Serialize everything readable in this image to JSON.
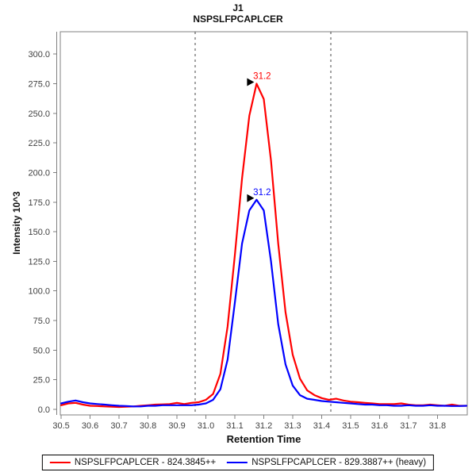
{
  "header": {
    "title": "J1",
    "subtitle": "NSPSLFPCAPLCER"
  },
  "chart_data": {
    "type": "line",
    "title": "J1",
    "subtitle": "NSPSLFPCAPLCER",
    "xlabel": "Retention Time",
    "ylabel": "Intensity 10^3",
    "grid": false,
    "legend_position": "bottom",
    "xlim": [
      30.497,
      31.903
    ],
    "ylim": [
      -4.7,
      318.9
    ],
    "x_ticks": [
      30.5,
      30.6,
      30.7,
      30.8,
      30.9,
      31.0,
      31.1,
      31.2,
      31.3,
      31.4,
      31.5,
      31.6,
      31.7,
      31.8
    ],
    "y_ticks": [
      0.0,
      25.0,
      50.0,
      75.0,
      100.0,
      125.0,
      150.0,
      175.0,
      200.0,
      225.0,
      250.0,
      275.0,
      300.0
    ],
    "peak_boundaries": [
      30.963,
      31.432
    ],
    "x": [
      30.5,
      30.525,
      30.55,
      30.575,
      30.6,
      30.625,
      30.65,
      30.675,
      30.7,
      30.725,
      30.75,
      30.775,
      30.8,
      30.825,
      30.85,
      30.875,
      30.9,
      30.925,
      30.95,
      30.975,
      31.0,
      31.025,
      31.05,
      31.075,
      31.1,
      31.125,
      31.15,
      31.175,
      31.2,
      31.225,
      31.25,
      31.275,
      31.3,
      31.325,
      31.35,
      31.375,
      31.4,
      31.425,
      31.45,
      31.475,
      31.5,
      31.525,
      31.55,
      31.575,
      31.6,
      31.625,
      31.65,
      31.675,
      31.7,
      31.725,
      31.75,
      31.775,
      31.8,
      31.825,
      31.85,
      31.875,
      31.9
    ],
    "series": [
      {
        "name": "NSPSLFPCAPLCER - 824.3845++",
        "color": "#ff0000",
        "annotation": {
          "label": "31.2",
          "x": 31.175,
          "y": 275.0
        },
        "values": [
          3.5,
          5.0,
          5.5,
          4.0,
          3.0,
          2.8,
          2.5,
          2.2,
          2.0,
          2.2,
          2.5,
          3.0,
          3.5,
          4.0,
          4.2,
          4.5,
          5.5,
          4.5,
          5.5,
          6.0,
          8.0,
          13.0,
          30.0,
          70.0,
          130.0,
          195.0,
          248.0,
          275.0,
          262.0,
          210.0,
          140.0,
          82.0,
          46.0,
          26.0,
          16.0,
          12.0,
          9.5,
          8.0,
          9.0,
          7.5,
          6.5,
          6.0,
          5.5,
          5.0,
          4.5,
          4.5,
          4.5,
          5.0,
          4.0,
          3.5,
          3.5,
          4.0,
          3.5,
          3.0,
          4.0,
          3.0,
          3.0
        ]
      },
      {
        "name": "NSPSLFPCAPLCER - 829.3887++ (heavy)",
        "color": "#0000ff",
        "annotation": {
          "label": "31.2",
          "x": 31.175,
          "y": 177.0
        },
        "values": [
          5.0,
          6.5,
          7.5,
          6.0,
          5.0,
          4.5,
          4.0,
          3.5,
          3.0,
          2.8,
          2.5,
          2.5,
          3.0,
          3.0,
          3.5,
          3.5,
          3.5,
          3.5,
          3.5,
          4.0,
          5.0,
          8.0,
          17.0,
          42.0,
          90.0,
          140.0,
          168.0,
          177.0,
          168.0,
          125.0,
          72.0,
          38.0,
          20.0,
          12.0,
          9.0,
          8.0,
          7.0,
          6.5,
          6.0,
          5.5,
          5.0,
          4.5,
          4.0,
          4.0,
          3.5,
          3.5,
          3.0,
          3.0,
          3.5,
          3.0,
          3.0,
          3.5,
          3.0,
          3.0,
          2.8,
          2.8,
          3.0
        ]
      }
    ]
  },
  "legend": {
    "items": [
      {
        "label": "NSPSLFPCAPLCER - 824.3845++",
        "color": "#ff0000"
      },
      {
        "label": "NSPSLFPCAPLCER - 829.3887++ (heavy)",
        "color": "#0000ff"
      }
    ]
  },
  "colors": {
    "light_series": "#ff0000",
    "heavy_series": "#0000ff",
    "plot_border": "#808080",
    "tick_label": "#404040",
    "boundary_line": "#444444",
    "annotation_arrow": "#000000"
  }
}
